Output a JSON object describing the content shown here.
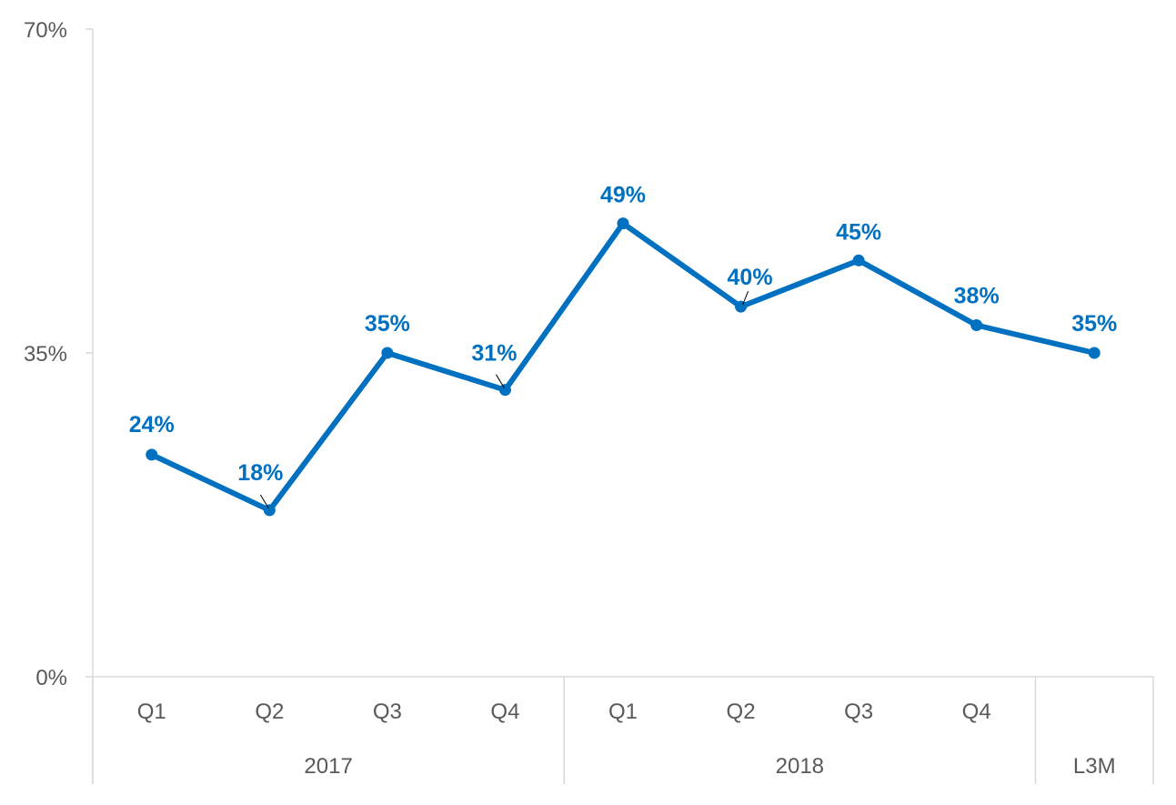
{
  "chart_data": {
    "type": "line",
    "title": "",
    "xlabel": "",
    "ylabel": "",
    "ylim": [
      0,
      70
    ],
    "y_ticks": [
      "0%",
      "35%",
      "70%"
    ],
    "y_tick_values": [
      0,
      35,
      70
    ],
    "categories": [
      "Q1",
      "Q2",
      "Q3",
      "Q4",
      "Q1",
      "Q2",
      "Q3",
      "Q4",
      ""
    ],
    "groups": [
      {
        "label": "2017",
        "span": 4
      },
      {
        "label": "2018",
        "span": 4
      },
      {
        "label": "L3M",
        "span": 1
      }
    ],
    "series": [
      {
        "values": [
          24,
          18,
          35,
          31,
          49,
          40,
          45,
          38,
          35
        ],
        "labels": [
          "24%",
          "18%",
          "35%",
          "31%",
          "49%",
          "40%",
          "45%",
          "38%",
          "35%"
        ],
        "color": "#0070c0"
      }
    ],
    "grid": false,
    "legend": "none"
  }
}
